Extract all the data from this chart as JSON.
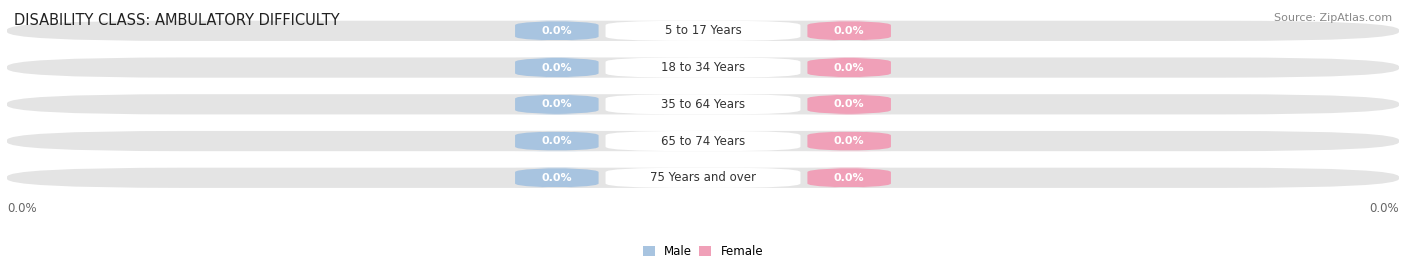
{
  "title": "DISABILITY CLASS: AMBULATORY DIFFICULTY",
  "source_text": "Source: ZipAtlas.com",
  "categories": [
    "5 to 17 Years",
    "18 to 34 Years",
    "35 to 64 Years",
    "65 to 74 Years",
    "75 Years and over"
  ],
  "male_values": [
    0.0,
    0.0,
    0.0,
    0.0,
    0.0
  ],
  "female_values": [
    0.0,
    0.0,
    0.0,
    0.0,
    0.0
  ],
  "male_color": "#a8c4e0",
  "female_color": "#f0a0b8",
  "male_label": "Male",
  "female_label": "Female",
  "bar_bg_color": "#e4e4e4",
  "row_bg_color": "#f2f2f2",
  "label_bg_color": "#ffffff",
  "xlim": [
    -1.0,
    1.0
  ],
  "title_fontsize": 10.5,
  "label_fontsize": 8.5,
  "tick_fontsize": 8.5,
  "source_fontsize": 8.0,
  "figsize": [
    14.06,
    2.69
  ],
  "dpi": 100,
  "x_left_label": "0.0%",
  "x_right_label": "0.0%"
}
